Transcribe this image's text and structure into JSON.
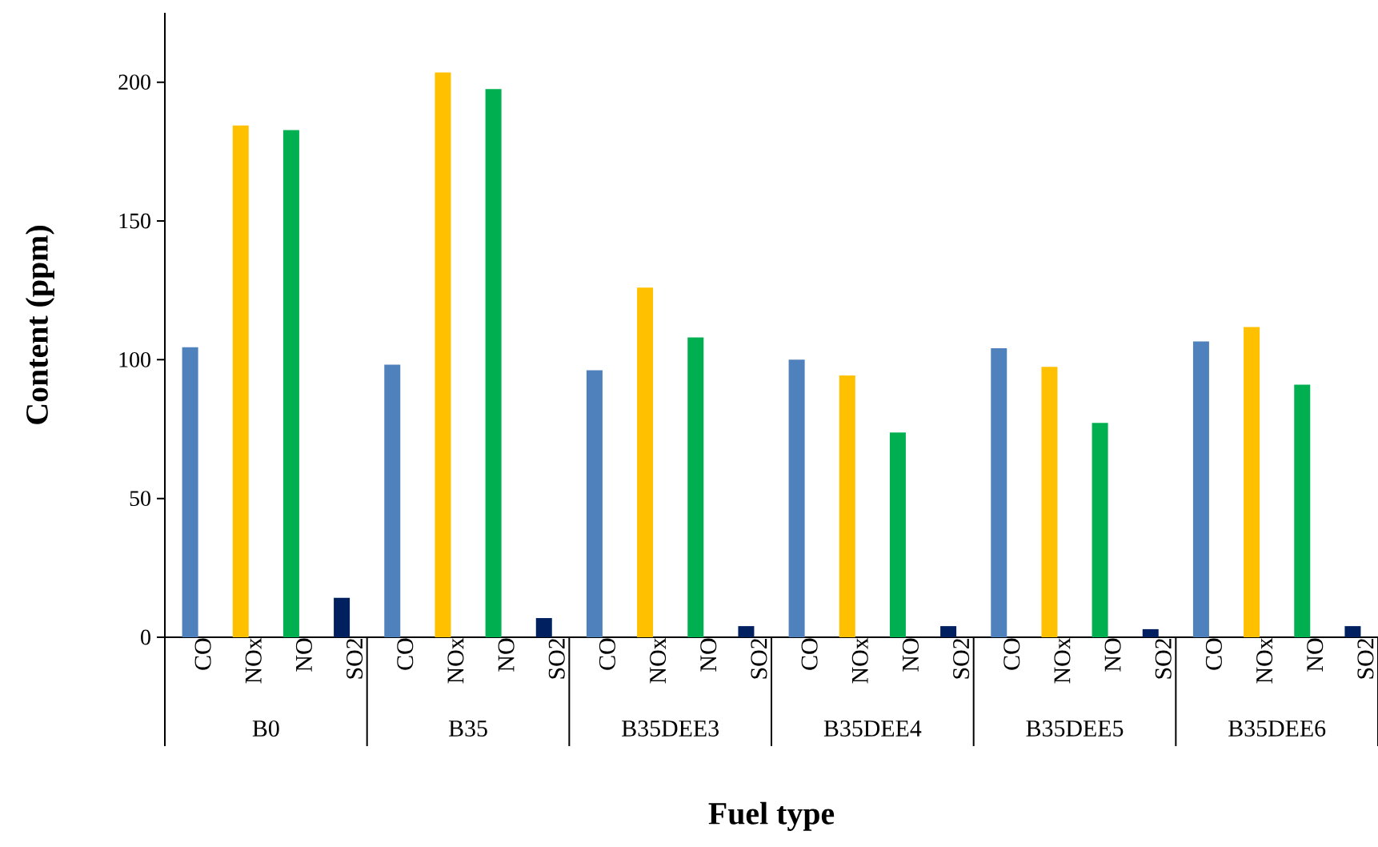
{
  "chart_data": {
    "type": "bar",
    "xlabel": "Fuel type",
    "ylabel": "Content (ppm)",
    "categories": [
      "B0",
      "B35",
      "B35DEE3",
      "B35DEE4",
      "B35DEE5",
      "B35DEE6"
    ],
    "series": [
      {
        "name": "CO",
        "color": "#4f81bd",
        "values": [
          104.5,
          98.2,
          96.2,
          100,
          104.1,
          106.6
        ]
      },
      {
        "name": "NOx",
        "color": "#ffc000",
        "values": [
          184.4,
          203.5,
          126,
          94.3,
          97.4,
          111.8
        ]
      },
      {
        "name": "NO",
        "color": "#00b050",
        "values": [
          182.7,
          197.5,
          108,
          73.8,
          77.2,
          91
        ]
      },
      {
        "name": "SO2",
        "color": "#002060",
        "values": [
          14.2,
          6.9,
          4,
          4,
          2.9,
          4
        ]
      }
    ],
    "ylim": [
      0,
      225
    ],
    "yticks": [
      0,
      50,
      100,
      150,
      200
    ]
  }
}
